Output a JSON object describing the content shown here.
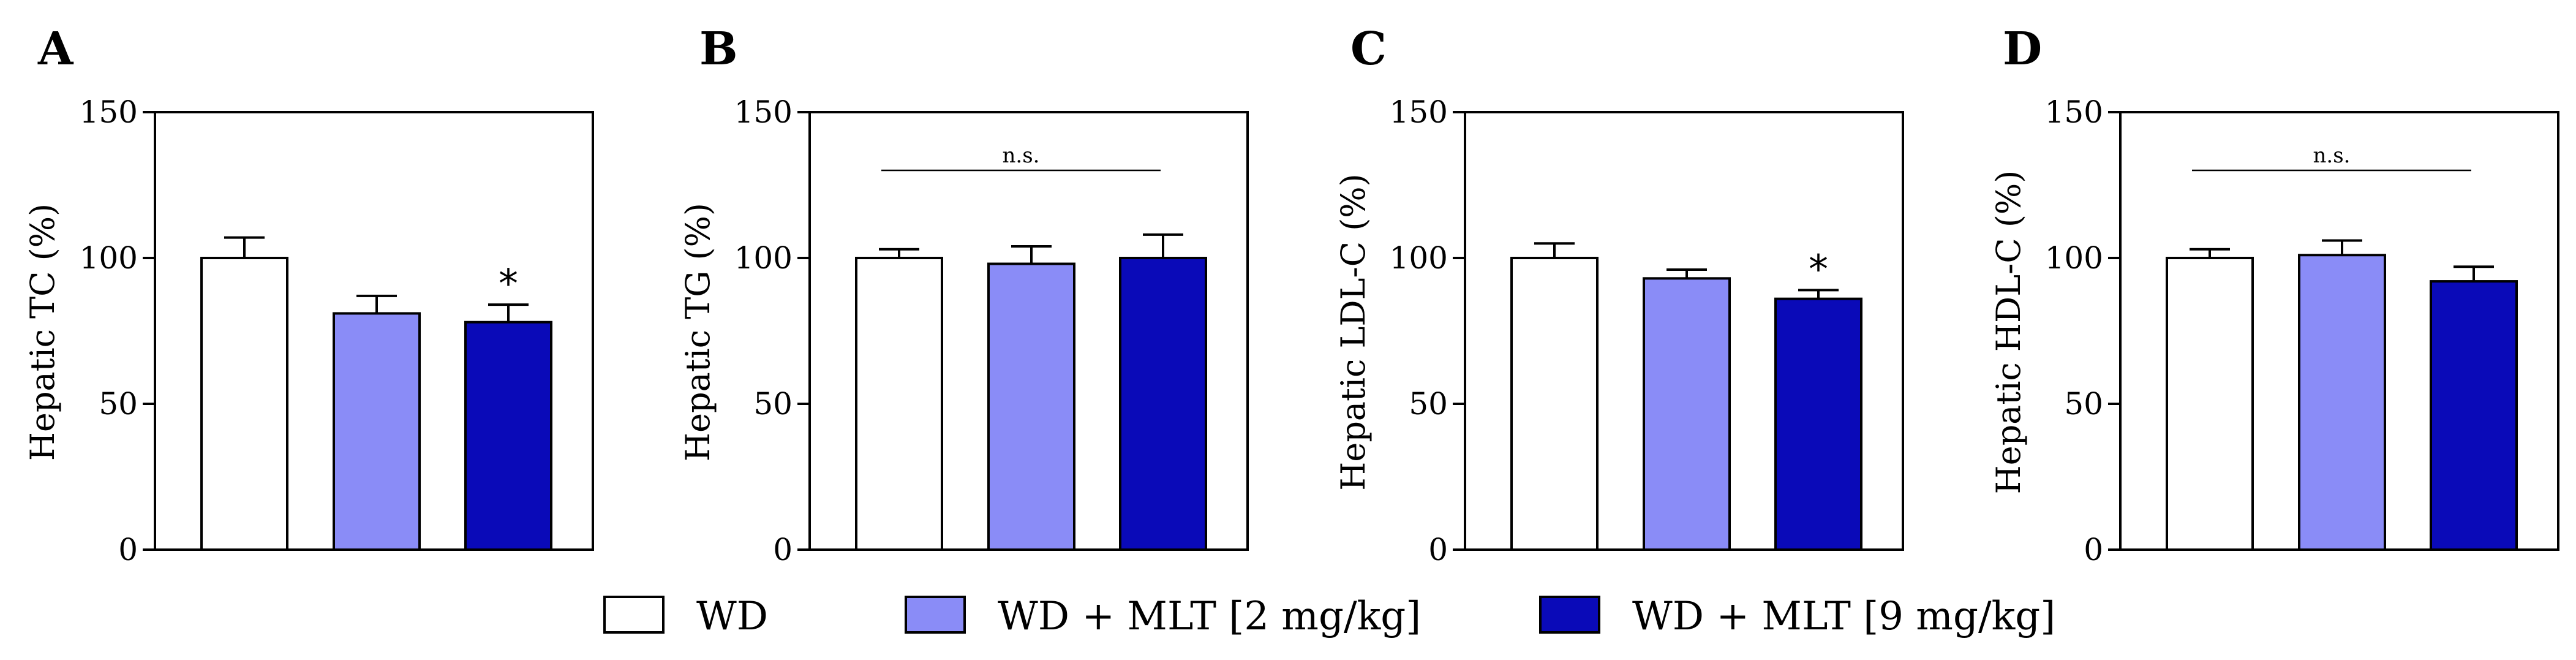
{
  "chart_data": [
    {
      "type": "bar",
      "panel": "A",
      "ylabel": "Hepatic TC (%)",
      "ylim": [
        0,
        150
      ],
      "yticks": [
        "0",
        "50",
        "100",
        "150"
      ],
      "categories": [
        "WD",
        "WD + MLT [2 mg/kg]",
        "WD + MLT [9 mg/kg]"
      ],
      "values": [
        100,
        81,
        78
      ],
      "errors": [
        7,
        6,
        6
      ],
      "significance": [
        "",
        "",
        "*"
      ],
      "bracket": ""
    },
    {
      "type": "bar",
      "panel": "B",
      "ylabel": "Hepatic TG (%)",
      "ylim": [
        0,
        150
      ],
      "yticks": [
        "0",
        "50",
        "100",
        "150"
      ],
      "categories": [
        "WD",
        "WD + MLT [2 mg/kg]",
        "WD + MLT [9 mg/kg]"
      ],
      "values": [
        100,
        98,
        100
      ],
      "errors": [
        3,
        6,
        8
      ],
      "significance": [
        "",
        "",
        ""
      ],
      "bracket": "n.s."
    },
    {
      "type": "bar",
      "panel": "C",
      "ylabel": "Hepatic LDL-C (%)",
      "ylim": [
        0,
        150
      ],
      "yticks": [
        "0",
        "50",
        "100",
        "150"
      ],
      "categories": [
        "WD",
        "WD + MLT [2 mg/kg]",
        "WD + MLT [9 mg/kg]"
      ],
      "values": [
        100,
        93,
        86
      ],
      "errors": [
        5,
        3,
        3
      ],
      "significance": [
        "",
        "",
        "*"
      ],
      "bracket": ""
    },
    {
      "type": "bar",
      "panel": "D",
      "ylabel": "Hepatic HDL-C (%)",
      "ylim": [
        0,
        150
      ],
      "yticks": [
        "0",
        "50",
        "100",
        "150"
      ],
      "categories": [
        "WD",
        "WD + MLT [2 mg/kg]",
        "WD + MLT [9 mg/kg]"
      ],
      "values": [
        100,
        101,
        92
      ],
      "errors": [
        3,
        5,
        5
      ],
      "significance": [
        "",
        "",
        ""
      ],
      "bracket": "n.s."
    }
  ],
  "legend": {
    "position": "bottom",
    "items": [
      {
        "label": "WD",
        "color": "#ffffff"
      },
      {
        "label": "WD + MLT [2 mg/kg]",
        "color": "#8a8cf7"
      },
      {
        "label": "WD + MLT [9 mg/kg]",
        "color": "#0a0ab8"
      }
    ]
  },
  "colors": {
    "bar_outline": "#000000",
    "axis": "#000000"
  }
}
